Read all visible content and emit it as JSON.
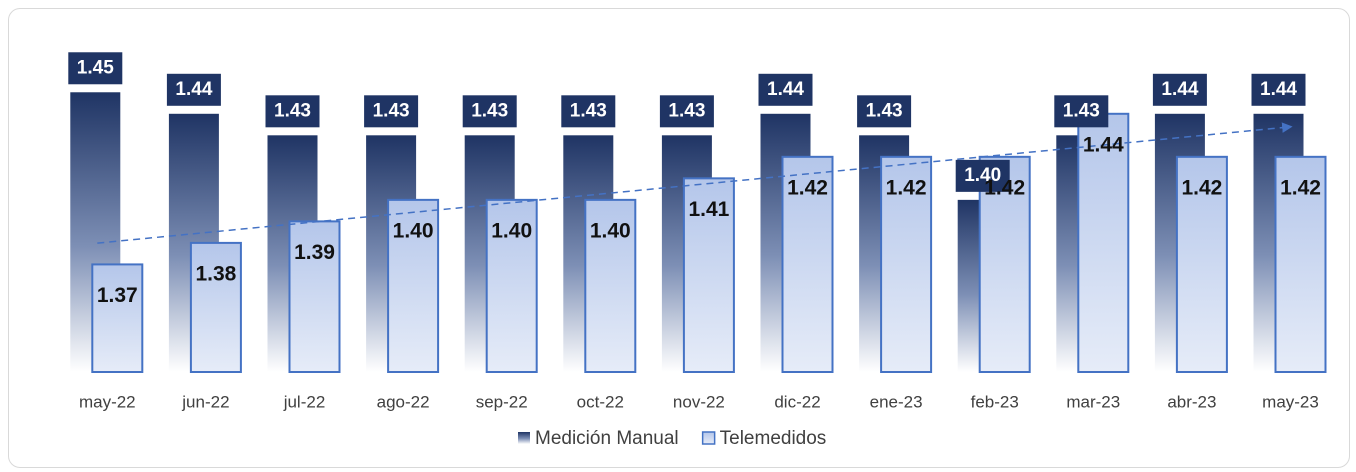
{
  "chart_data": {
    "type": "bar",
    "categories": [
      "may-22",
      "jun-22",
      "jul-22",
      "ago-22",
      "sep-22",
      "oct-22",
      "nov-22",
      "dic-22",
      "ene-23",
      "feb-23",
      "mar-23",
      "abr-23",
      "may-23"
    ],
    "series": [
      {
        "name": "Medición Manual",
        "color": "#1f3464",
        "values": [
          1.45,
          1.44,
          1.43,
          1.43,
          1.43,
          1.43,
          1.43,
          1.44,
          1.43,
          1.4,
          1.43,
          1.44,
          1.44
        ],
        "value_labels": [
          "1.45",
          "1.44",
          "1.43",
          "1.43",
          "1.43",
          "1.43",
          "1.43",
          "1.44",
          "1.43",
          "1.40",
          "1.43",
          "1.44",
          "1.44"
        ]
      },
      {
        "name": "Telemedidos",
        "color": "#4472c4",
        "values": [
          1.37,
          1.38,
          1.39,
          1.4,
          1.4,
          1.4,
          1.41,
          1.42,
          1.42,
          1.42,
          1.44,
          1.42,
          1.42
        ],
        "value_labels": [
          "1.37",
          "1.38",
          "1.39",
          "1.40",
          "1.40",
          "1.40",
          "1.41",
          "1.42",
          "1.42",
          "1.42",
          "1.44",
          "1.42",
          "1.42"
        ],
        "trendline": true
      }
    ],
    "ylim": [
      1.32,
      1.465
    ],
    "legend": "bottom"
  }
}
